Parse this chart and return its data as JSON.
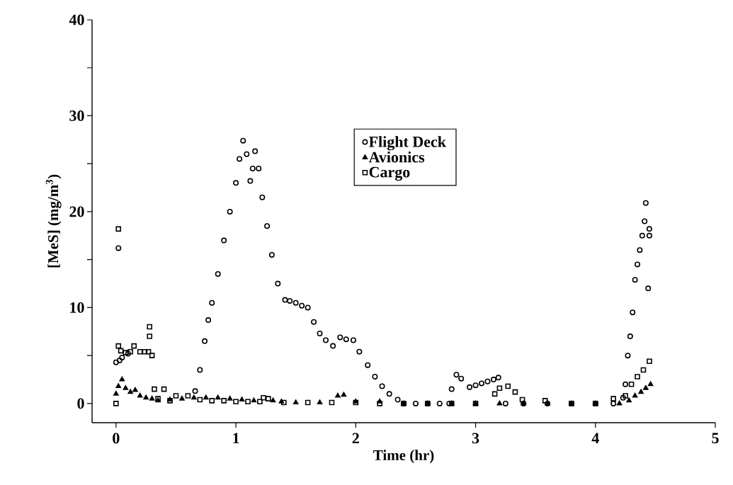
{
  "chart_data": {
    "type": "scatter",
    "xlabel": "Time (hr)",
    "ylabel": "[MeS]  (mg/m$^{3}$)",
    "xlim": [
      -0.2,
      5
    ],
    "ylim": [
      -2,
      40
    ],
    "xticks": [
      0,
      1,
      2,
      3,
      4,
      5
    ],
    "yticks": [
      0,
      {
        "value": 5,
        "label": null
      },
      10,
      {
        "value": 15,
        "label": null
      },
      20,
      {
        "value": 25,
        "label": null
      },
      30,
      {
        "value": 35,
        "label": null
      },
      40
    ],
    "legend": "top",
    "grid": false,
    "series": [
      {
        "name": "Flight Deck",
        "color": "#000000",
        "marker": "circle",
        "x": [
          0.0,
          0.02,
          0.03,
          0.05,
          0.1,
          0.66,
          0.7,
          0.74,
          0.77,
          0.8,
          0.85,
          0.9,
          0.95,
          1.0,
          1.03,
          1.06,
          1.09,
          1.12,
          1.14,
          1.16,
          1.19,
          1.22,
          1.26,
          1.3,
          1.35,
          1.41,
          1.45,
          1.5,
          1.55,
          1.6,
          1.65,
          1.7,
          1.75,
          1.81,
          1.87,
          1.92,
          1.98,
          2.03,
          2.1,
          2.16,
          2.22,
          2.28,
          2.35,
          2.4,
          2.5,
          2.6,
          2.7,
          2.78,
          2.8,
          2.84,
          2.88,
          2.95,
          3.0,
          3.05,
          3.1,
          3.15,
          3.19,
          3.25,
          3.4,
          3.6,
          3.8,
          4.0,
          4.15,
          4.23,
          4.25,
          4.27,
          4.29,
          4.31,
          4.33,
          4.35,
          4.37,
          4.39,
          4.41,
          4.42,
          4.44,
          4.45,
          4.45
        ],
        "values": [
          4.3,
          16.2,
          4.5,
          4.8,
          5.2,
          1.3,
          3.5,
          6.5,
          8.7,
          10.5,
          13.5,
          17,
          20,
          23,
          25.5,
          27.4,
          26,
          23.2,
          24.5,
          26.3,
          24.5,
          21.5,
          18.5,
          15.5,
          12.5,
          10.8,
          10.7,
          10.5,
          10.2,
          10,
          8.5,
          7.3,
          6.6,
          6,
          6.9,
          6.7,
          6.6,
          5.4,
          4,
          2.8,
          1.8,
          1,
          0.4,
          0,
          0,
          0,
          0,
          0,
          1.5,
          3,
          2.6,
          1.7,
          1.9,
          2.1,
          2.3,
          2.5,
          2.7,
          0,
          0,
          0,
          0,
          0,
          0,
          0.6,
          2,
          5,
          7,
          9.5,
          12.9,
          14.5,
          16,
          17.5,
          19,
          20.9,
          12,
          18.2,
          17.5
        ]
      },
      {
        "name": "Avionics",
        "color": "#000000",
        "marker": "triangle",
        "x": [
          0.0,
          0.02,
          0.05,
          0.08,
          0.12,
          0.16,
          0.2,
          0.25,
          0.3,
          0.35,
          0.45,
          0.55,
          0.65,
          0.75,
          0.85,
          0.95,
          1.05,
          1.15,
          1.31,
          1.38,
          1.5,
          1.7,
          1.85,
          1.9,
          2.0,
          2.2,
          2.4,
          2.6,
          2.8,
          3.0,
          3.2,
          3.4,
          3.6,
          3.8,
          4.0,
          4.2,
          4.28,
          4.33,
          4.38,
          4.42,
          4.46
        ],
        "values": [
          1,
          1.8,
          2.5,
          1.6,
          1.2,
          1.4,
          0.8,
          0.6,
          0.5,
          0.3,
          0.4,
          0.5,
          0.6,
          0.6,
          0.6,
          0.5,
          0.4,
          0.3,
          0.3,
          0.2,
          0.1,
          0.1,
          0.8,
          0.9,
          0.2,
          0.2,
          0,
          0,
          0,
          0,
          0,
          0,
          0,
          0,
          0,
          0,
          0.3,
          0.8,
          1.2,
          1.6,
          2
        ]
      },
      {
        "name": "Cargo",
        "color": "#000000",
        "marker": "square",
        "x": [
          0.0,
          0.02,
          0.02,
          0.04,
          0.08,
          0.12,
          0.15,
          0.2,
          0.24,
          0.27,
          0.28,
          0.28,
          0.3,
          0.32,
          0.35,
          0.4,
          0.45,
          0.5,
          0.6,
          0.7,
          0.8,
          0.9,
          1.0,
          1.1,
          1.2,
          1.23,
          1.27,
          1.4,
          1.6,
          1.8,
          2.0,
          2.2,
          2.4,
          2.6,
          2.8,
          3.0,
          3.16,
          3.2,
          3.27,
          3.33,
          3.39,
          3.58,
          3.8,
          4.0,
          4.15,
          4.25,
          4.3,
          4.35,
          4.4,
          4.45
        ],
        "values": [
          0,
          18.2,
          6,
          5.5,
          5.3,
          5.4,
          6,
          5.4,
          5.4,
          5.4,
          8,
          7,
          5,
          1.5,
          0.5,
          1.5,
          0.3,
          0.8,
          0.8,
          0.4,
          0.3,
          0.3,
          0.2,
          0.2,
          0.2,
          0.6,
          0.5,
          0.1,
          0.1,
          0.1,
          0.1,
          0,
          0,
          0,
          0,
          0,
          1,
          1.6,
          1.8,
          1.2,
          0.4,
          0.3,
          0,
          0,
          0.5,
          0.8,
          2,
          2.8,
          3.5,
          4.4
        ]
      }
    ]
  }
}
